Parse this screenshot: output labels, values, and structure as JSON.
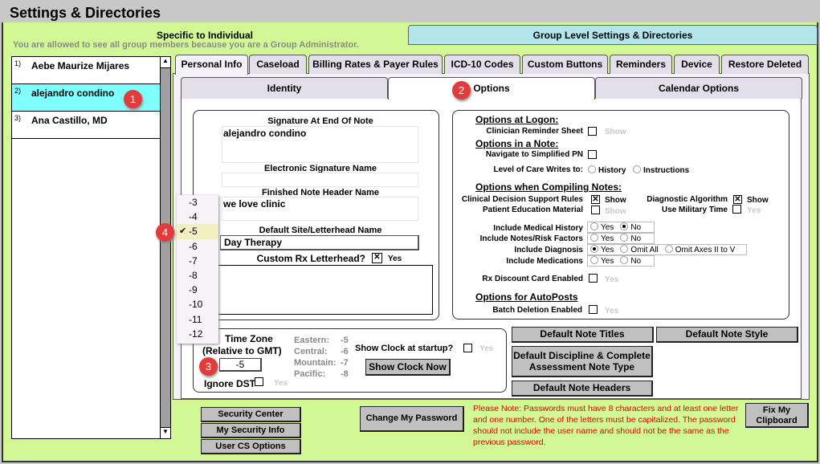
{
  "window": {
    "title": "Settings & Directories"
  },
  "top_tabs": {
    "individual": "Specific to Individual",
    "group": "Group Level Settings & Directories"
  },
  "admin_notice": "You are allowed to see all group members because you are a Group Administrator.",
  "members": [
    {
      "num": "1)",
      "name": "Aebe Maurize Mijares",
      "selected": false
    },
    {
      "num": "2)",
      "name": "alejandro condino",
      "selected": true
    },
    {
      "num": "3)",
      "name": "Ana Castillo, MD",
      "selected": false
    }
  ],
  "tabs": [
    "Personal Info",
    "Caseload",
    "Billing Rates & Payer Rules",
    "ICD-10 Codes",
    "Custom Buttons",
    "Reminders",
    "Device",
    "Restore Deleted"
  ],
  "subtabs": [
    "Identity",
    "Options",
    "Calendar Options"
  ],
  "identity": {
    "signature_label": "Signature At End Of Note",
    "signature_value": "alejandro condino",
    "esig_label": "Electronic Signature Name",
    "esig_value": "",
    "header_label": "Finished Note Header Name",
    "header_value": "we love clinic",
    "site_label": "Default Site/Letterhead Name",
    "site_value": "Day Therapy",
    "custom_rx_label": "Custom Rx Letterhead?",
    "custom_rx_yes": "Yes"
  },
  "timezone": {
    "label1": "Time Zone",
    "label2": "(Relative to GMT)",
    "value": "-5",
    "zones": [
      {
        "name": "Eastern:",
        "offset": "-5"
      },
      {
        "name": "Central:",
        "offset": "-6"
      },
      {
        "name": "Mountain:",
        "offset": "-7"
      },
      {
        "name": "Pacific:",
        "offset": "-8"
      }
    ],
    "show_clock_label": "Show Clock at startup?",
    "show_clock_yes": "Yes",
    "show_clock_button": "Show Clock Now",
    "ignore_dst_label": "Ignore DST",
    "ignore_dst_yes": "Yes",
    "dropdown": [
      "-3",
      "-4",
      "-5",
      "-6",
      "-7",
      "-8",
      "-9",
      "-10",
      "-11",
      "-12"
    ],
    "dropdown_selected": "-5"
  },
  "options": {
    "logon_heading": "Options at Logon:",
    "reminder_label": "Clinician Reminder Sheet",
    "show": "Show",
    "note_heading": "Options in a Note:",
    "simplified_label": "Navigate to Simplified PN",
    "loc_label": "Level of Care Writes to:",
    "loc_history": "History",
    "loc_instructions": "Instructions",
    "compile_heading": "Options when Compiling Notes:",
    "cds_label": "Clinical Decision Support Rules",
    "diag_alg_label": "Diagnostic Algorithm",
    "pem_label": "Patient Education Material",
    "military_label": "Use Military Time",
    "yes": "Yes",
    "no": "No",
    "med_hist_label": "Include Medical History",
    "risk_label": "Include Notes/Risk Factors",
    "diagnosis_label": "Include Diagnosis",
    "omit_all": "Omit All",
    "omit_axes": "Omit Axes II to V",
    "meds_label": "Include Medications",
    "rx_card_label": "Rx Discount Card Enabled",
    "autopost_heading": "Options for AutoPosts",
    "batch_label": "Batch Deletion Enabled"
  },
  "buttons": {
    "note_titles": "Default Note Titles",
    "note_style": "Default Note Style",
    "discipline": "Default Discipline & Complete Assessment Note Type",
    "note_headers": "Default Note Headers",
    "security_center": "Security Center",
    "my_security": "My Security Info",
    "user_cs": "User CS Options",
    "change_password": "Change My Password",
    "fix_clipboard": "Fix My Clipboard"
  },
  "password_note": "Please Note: Passwords must have 8 characters and at least one letter and one number. One of the letters must be capitalized. The password should not include the user name and should not be the same as the previous password.",
  "badges": [
    "1",
    "2",
    "3",
    "4"
  ],
  "colors": {
    "panel_green": "#d2f896",
    "selected_row": "#80ffff",
    "group_tab": "#b3e6ec",
    "badge": "#e23b3b",
    "warning": "#e00000"
  }
}
